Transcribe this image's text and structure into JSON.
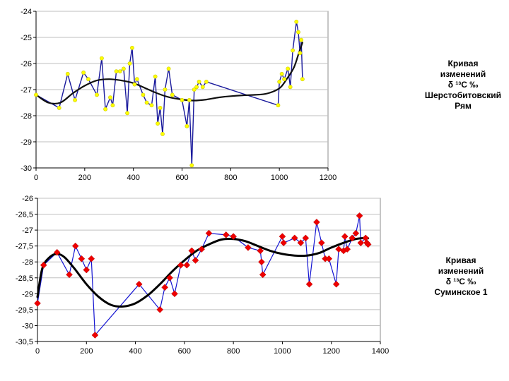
{
  "chart_data": [
    {
      "type": "line",
      "title": "",
      "xlim": [
        0,
        1200
      ],
      "ylim": [
        -30,
        -24
      ],
      "x_ticks": [
        "0",
        "200",
        "400",
        "600",
        "800",
        "1000",
        "1200"
      ],
      "y_ticks": [
        "-24",
        "-25",
        "-26",
        "-27",
        "-28",
        "-29",
        "-30"
      ],
      "label": [
        "Кривая",
        "изменений",
        "δ ¹³С ‰",
        "Шерстобитовский",
        "Рям"
      ],
      "colors": {
        "line": "#1a1a9c",
        "marker": "#ffff00",
        "marker_edge": "#c8c800",
        "trend": "#111111",
        "grid": "#bfbfbf",
        "plot_bg": "#ffffff"
      },
      "series": [
        {
          "name": "data",
          "x": [
            0,
            95,
            130,
            160,
            195,
            215,
            250,
            270,
            285,
            305,
            315,
            330,
            345,
            360,
            375,
            385,
            395,
            405,
            415,
            440,
            455,
            475,
            490,
            500,
            510,
            520,
            530,
            545,
            560,
            600,
            620,
            630,
            640,
            650,
            660,
            670,
            685,
            700,
            995,
            1000,
            1010,
            1020,
            1035,
            1045,
            1055,
            1070,
            1078,
            1085,
            1090,
            1095
          ],
          "y": [
            -27.2,
            -27.7,
            -26.4,
            -27.4,
            -26.35,
            -26.6,
            -27.2,
            -25.8,
            -27.75,
            -27.3,
            -27.6,
            -26.3,
            -26.3,
            -26.2,
            -27.9,
            -26.0,
            -25.4,
            -26.8,
            -26.6,
            -27.2,
            -27.5,
            -27.6,
            -26.5,
            -28.3,
            -27.7,
            -28.7,
            -27.0,
            -26.2,
            -27.2,
            -27.4,
            -28.4,
            -27.4,
            -29.9,
            -27.0,
            -26.9,
            -26.7,
            -26.9,
            -26.7,
            -27.6,
            -26.7,
            -26.4,
            -26.6,
            -26.2,
            -26.9,
            -25.5,
            -24.4,
            -24.8,
            -25.6,
            -25.1,
            -26.6
          ]
        },
        {
          "name": "trend",
          "x": [
            0,
            50,
            100,
            150,
            200,
            250,
            300,
            350,
            400,
            450,
            500,
            550,
            600,
            650,
            700,
            750,
            800,
            850,
            900,
            950,
            1000,
            1030,
            1060,
            1080,
            1095
          ],
          "y": [
            -27.2,
            -27.5,
            -27.5,
            -27.15,
            -26.85,
            -26.65,
            -26.6,
            -26.65,
            -26.75,
            -26.95,
            -27.15,
            -27.3,
            -27.38,
            -27.42,
            -27.38,
            -27.3,
            -27.25,
            -27.22,
            -27.2,
            -27.15,
            -26.95,
            -26.6,
            -26.15,
            -25.6,
            -25.2
          ]
        }
      ]
    },
    {
      "type": "line",
      "title": "",
      "xlim": [
        0,
        1400
      ],
      "ylim": [
        -30.5,
        -26
      ],
      "x_ticks": [
        "0",
        "200",
        "400",
        "600",
        "800",
        "1000",
        "1200",
        "1400"
      ],
      "y_ticks": [
        "-26",
        "-26,5",
        "-27",
        "-27,5",
        "-28",
        "-28,5",
        "-29",
        "-29,5",
        "-30",
        "-30,5"
      ],
      "label": [
        "Кривая",
        "изменений",
        "δ ¹³С ‰",
        "Суминское 1"
      ],
      "colors": {
        "line": "#1414d2",
        "marker": "#ee0000",
        "trend": "#000000",
        "grid": "#c0c0c0",
        "plot_bg": "#ffffff"
      },
      "series": [
        {
          "name": "data",
          "x": [
            0,
            25,
            80,
            130,
            155,
            180,
            200,
            220,
            235,
            415,
            500,
            520,
            540,
            560,
            585,
            610,
            630,
            645,
            670,
            700,
            770,
            800,
            860,
            910,
            915,
            920,
            1000,
            1005,
            1050,
            1075,
            1095,
            1110,
            1140,
            1160,
            1175,
            1190,
            1220,
            1230,
            1250,
            1255,
            1265,
            1285,
            1300,
            1315,
            1320,
            1340,
            1345,
            1350
          ],
          "y": [
            -29.3,
            -28.1,
            -27.7,
            -28.4,
            -27.5,
            -27.9,
            -28.25,
            -27.9,
            -30.3,
            -28.7,
            -29.5,
            -28.8,
            -28.5,
            -29.0,
            -28.1,
            -28.1,
            -27.65,
            -27.95,
            -27.6,
            -27.1,
            -27.15,
            -27.2,
            -27.55,
            -27.65,
            -28.0,
            -28.4,
            -27.2,
            -27.4,
            -27.25,
            -27.4,
            -27.25,
            -28.7,
            -26.75,
            -27.4,
            -27.9,
            -27.9,
            -28.7,
            -27.6,
            -27.65,
            -27.2,
            -27.6,
            -27.25,
            -27.1,
            -26.55,
            -27.4,
            -27.25,
            -27.4,
            -27.45
          ]
        },
        {
          "name": "trend",
          "x": [
            0,
            20,
            50,
            80,
            110,
            150,
            200,
            250,
            300,
            350,
            400,
            450,
            500,
            550,
            600,
            650,
            700,
            750,
            800,
            850,
            900,
            950,
            1000,
            1050,
            1100,
            1150,
            1200,
            1250,
            1300,
            1340,
            1350
          ],
          "y": [
            -29.1,
            -28.2,
            -27.85,
            -27.75,
            -27.85,
            -28.2,
            -28.7,
            -29.1,
            -29.35,
            -29.4,
            -29.3,
            -29.05,
            -28.7,
            -28.3,
            -27.95,
            -27.65,
            -27.45,
            -27.3,
            -27.28,
            -27.35,
            -27.5,
            -27.65,
            -27.75,
            -27.8,
            -27.8,
            -27.72,
            -27.55,
            -27.4,
            -27.28,
            -27.25,
            -27.26
          ]
        }
      ]
    }
  ]
}
